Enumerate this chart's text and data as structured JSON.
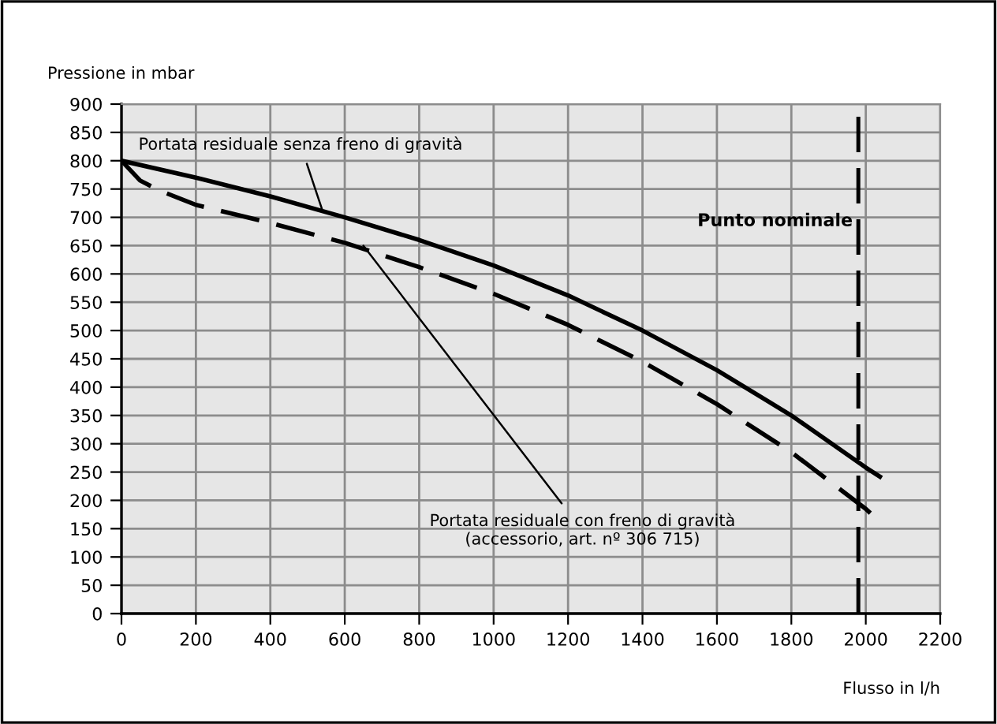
{
  "chart_data": {
    "type": "line",
    "xlabel": "Flusso in l/h",
    "ylabel": "Pressione in mbar",
    "xlim": [
      0,
      2200
    ],
    "xticks": [
      0,
      200,
      400,
      600,
      800,
      1000,
      1200,
      1400,
      1600,
      1800,
      2000,
      2200
    ],
    "ylim": [
      0,
      900
    ],
    "yticks": [
      0,
      50,
      100,
      150,
      200,
      250,
      300,
      350,
      400,
      450,
      500,
      550,
      600,
      650,
      700,
      750,
      800,
      850,
      900
    ],
    "grid": true,
    "marker": "none",
    "series": [
      {
        "color": "#000000",
        "line_style": "solid",
        "x": [
          0,
          200,
          400,
          600,
          800,
          1000,
          1200,
          1400,
          1600,
          1800,
          2000,
          2038
        ],
        "values": [
          800,
          770,
          737,
          700,
          660,
          615,
          562,
          500,
          430,
          350,
          258,
          242
        ]
      },
      {
        "color": "#000000",
        "line_style": "dashed",
        "x": [
          0,
          50,
          100,
          200,
          400,
          600,
          800,
          1000,
          1200,
          1400,
          1600,
          1800,
          2000,
          2023
        ],
        "values": [
          800,
          765,
          748,
          722,
          690,
          655,
          612,
          565,
          510,
          445,
          370,
          285,
          185,
          171
        ]
      }
    ],
    "ref_lines": [
      {
        "axis": "x",
        "value": 1980,
        "label": "Punto nominale",
        "color": "#000000",
        "line_style": "dashed"
      }
    ],
    "annotations": [
      {
        "text": "Portata residuale senza freno di gravità",
        "x": 540,
        "y": 712
      },
      {
        "text": "Portata residuale con freno di gravità\n(accessorio, art. nº 306 715)",
        "x": 650,
        "y": 650
      }
    ]
  }
}
